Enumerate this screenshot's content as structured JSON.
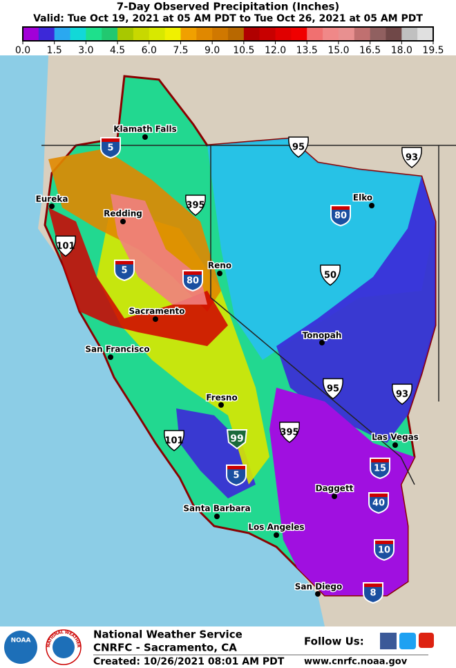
{
  "header": {
    "title": "7-Day Observed Precipitation (Inches)",
    "subtitle": "Valid: Tue Oct 19, 2021 at 05 AM PDT to Tue Oct 26, 2021 at 05 AM PDT"
  },
  "legend": {
    "lim": [
      0,
      19.5
    ],
    "colors": [
      "#a200d8",
      "#3c28d8",
      "#2aa8f0",
      "#12d8d8",
      "#1ee08c",
      "#22c870",
      "#a8c800",
      "#c8d800",
      "#d8e800",
      "#f0f000",
      "#f0a000",
      "#e08800",
      "#d07800",
      "#b86800",
      "#b00000",
      "#c80000",
      "#e00000",
      "#f00000",
      "#f07070",
      "#f08888",
      "#e89090",
      "#c07070",
      "#906060",
      "#704848",
      "#c0c0c0",
      "#e0e0e0"
    ],
    "ticks": [
      {
        "value": 0,
        "label": "0.0"
      },
      1.5,
      {
        "value": 3,
        "label": "3.0"
      },
      4.5,
      {
        "value": 6,
        "label": "6.0"
      },
      7.5,
      {
        "value": 9,
        "label": "9.0"
      },
      10.5,
      {
        "value": 12,
        "label": "12.0"
      },
      13.5,
      {
        "value": 15,
        "label": "15.0"
      },
      16.5,
      {
        "value": 18,
        "label": "18.0"
      },
      19.5
    ]
  },
  "map": {
    "cities": [
      "Klamath Falls",
      "Eureka",
      "Redding",
      "Reno",
      "Elko",
      "Sacramento",
      "San Francisco",
      "Tonopah",
      "Fresno",
      "Las Vegas",
      "Daggett",
      "Santa Barbara",
      "Los Angeles",
      "San Diego"
    ],
    "shields": [
      {
        "label": "5",
        "kind": "interstate"
      },
      {
        "label": "80",
        "kind": "interstate"
      },
      {
        "label": "5",
        "kind": "interstate"
      },
      {
        "label": "80",
        "kind": "interstate"
      },
      {
        "label": "15",
        "kind": "interstate"
      },
      {
        "label": "40",
        "kind": "interstate"
      },
      {
        "label": "10",
        "kind": "interstate"
      },
      {
        "label": "8",
        "kind": "interstate"
      },
      {
        "label": "5",
        "kind": "interstate"
      },
      {
        "label": "95",
        "kind": "us"
      },
      {
        "label": "93",
        "kind": "us"
      },
      {
        "label": "395",
        "kind": "us"
      },
      {
        "label": "101",
        "kind": "us"
      },
      {
        "label": "50",
        "kind": "us"
      },
      {
        "label": "95",
        "kind": "us"
      },
      {
        "label": "93",
        "kind": "us"
      },
      {
        "label": "101",
        "kind": "us"
      },
      {
        "label": "395",
        "kind": "us"
      },
      {
        "label": "99",
        "kind": "state"
      }
    ]
  },
  "footer": {
    "noaa": "NOAA",
    "nws_ring": "NATIONAL WEATHER SERVICE",
    "org": "National Weather Service",
    "office": "CNRFC - Sacramento, CA",
    "created": "Created: 10/26/2021 08:01 AM PDT",
    "follow": "Follow Us:",
    "url": "www.cnrfc.noaa.gov"
  }
}
